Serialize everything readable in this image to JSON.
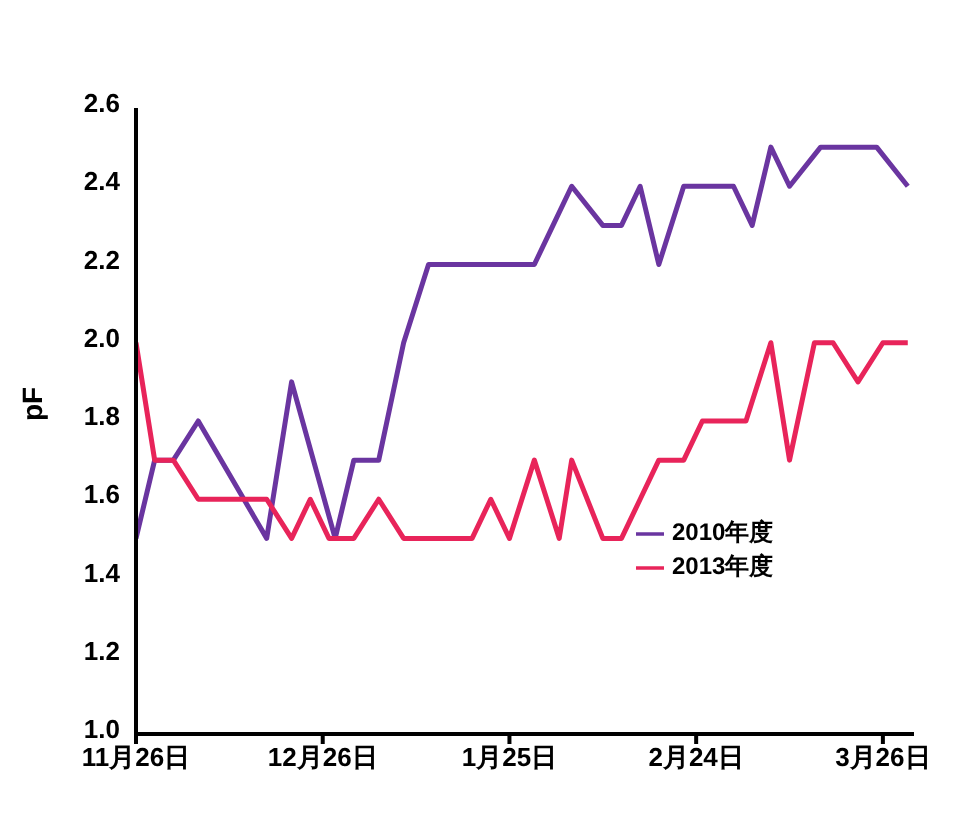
{
  "chart_data": {
    "type": "line",
    "ylabel": "pF",
    "xlim": [
      "2010-11-26",
      "2011-03-31"
    ],
    "ylim": [
      1.0,
      2.6
    ],
    "xticks": [
      {
        "value": "2010-11-26",
        "label": "11月26日"
      },
      {
        "value": "2010-12-26",
        "label": "12月26日"
      },
      {
        "value": "2011-01-25",
        "label": "1月25日"
      },
      {
        "value": "2011-02-24",
        "label": "2月24日"
      },
      {
        "value": "2011-03-26",
        "label": "3月26日"
      }
    ],
    "yticks": [
      {
        "value": 1.0,
        "label": "1.0"
      },
      {
        "value": 1.2,
        "label": "1.2"
      },
      {
        "value": 1.4,
        "label": "1.4"
      },
      {
        "value": 1.6,
        "label": "1.6"
      },
      {
        "value": 1.8,
        "label": "1.8"
      },
      {
        "value": 2.0,
        "label": "2.0"
      },
      {
        "value": 2.2,
        "label": "2.2"
      },
      {
        "value": 2.4,
        "label": "2.4"
      },
      {
        "value": 2.6,
        "label": "2.6"
      }
    ],
    "legend": "right",
    "line_style": "solid",
    "series": [
      {
        "name": "2010年度",
        "color": "#6a35a0",
        "x": [
          "2010-11-26",
          "2010-11-29",
          "2010-12-02",
          "2010-12-06",
          "2010-12-17",
          "2010-12-21",
          "2010-12-28",
          "2010-12-31",
          "2011-01-04",
          "2011-01-08",
          "2011-01-12",
          "2011-01-29",
          "2011-02-01",
          "2011-02-04",
          "2011-02-09",
          "2011-02-12",
          "2011-02-15",
          "2011-02-18",
          "2011-02-22",
          "2011-03-02",
          "2011-03-05",
          "2011-03-08",
          "2011-03-11",
          "2011-03-16",
          "2011-03-25",
          "2011-03-30"
        ],
        "values": [
          1.5,
          1.7,
          1.7,
          1.8,
          1.5,
          1.9,
          1.5,
          1.7,
          1.7,
          2.0,
          2.2,
          2.2,
          2.3,
          2.4,
          2.3,
          2.3,
          2.4,
          2.2,
          2.4,
          2.4,
          2.3,
          2.5,
          2.4,
          2.5,
          2.5,
          2.4
        ]
      },
      {
        "name": "2013年度",
        "color": "#e8245a",
        "x": [
          "2010-11-26",
          "2010-11-29",
          "2010-12-02",
          "2010-12-06",
          "2010-12-17",
          "2010-12-21",
          "2010-12-24",
          "2010-12-27",
          "2010-12-31",
          "2011-01-04",
          "2011-01-08",
          "2011-01-19",
          "2011-01-22",
          "2011-01-25",
          "2011-01-29",
          "2011-02-02",
          "2011-02-04",
          "2011-02-09",
          "2011-02-12",
          "2011-02-15",
          "2011-02-18",
          "2011-02-22",
          "2011-02-25",
          "2011-03-04",
          "2011-03-08",
          "2011-03-11",
          "2011-03-15",
          "2011-03-18",
          "2011-03-22",
          "2011-03-26",
          "2011-03-30"
        ],
        "values": [
          2.0,
          1.7,
          1.7,
          1.6,
          1.6,
          1.5,
          1.6,
          1.5,
          1.5,
          1.6,
          1.5,
          1.5,
          1.6,
          1.5,
          1.7,
          1.5,
          1.7,
          1.5,
          1.5,
          1.6,
          1.7,
          1.7,
          1.8,
          1.8,
          2.0,
          1.7,
          2.0,
          2.0,
          1.9,
          2.0,
          2.0
        ]
      }
    ]
  }
}
